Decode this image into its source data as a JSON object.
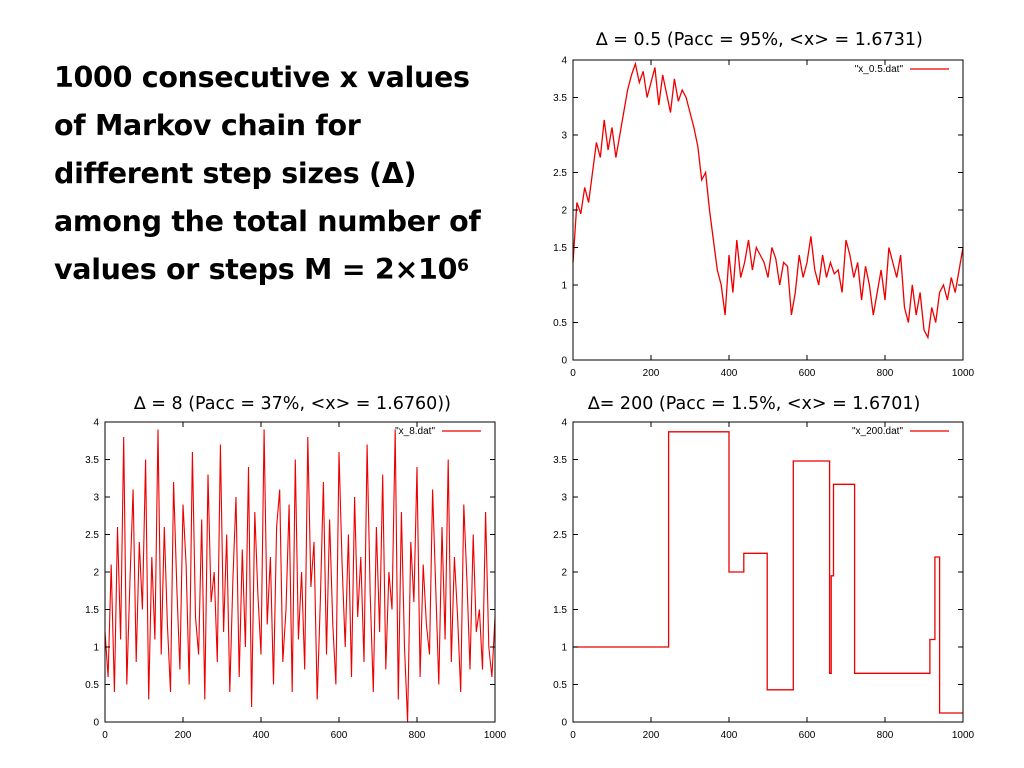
{
  "slide": {
    "heading": {
      "lines": [
        "1000 consecutive x values",
        "of Markov chain for",
        "different step sizes (Δ)",
        "among the total number of"
      ],
      "last_line_prefix": "values or steps M = 2×10",
      "last_line_superscript": "6"
    }
  },
  "panels": {
    "p05": {
      "caption": "∆ = 0.5 (Pacc = 95%, <x> = 1.6731)"
    },
    "p8": {
      "caption": "∆ = 8 (Pacc = 37%, <x> = 1.6760))"
    },
    "p200": {
      "caption": "∆= 200 (Pacc = 1.5%, <x> = 1.6701)"
    }
  },
  "colors": {
    "series": "#ee0000",
    "axis": "#000000",
    "text": "#000000"
  },
  "chart_data": [
    {
      "type": "line",
      "legend": "\"x_0.5.dat\"",
      "legend_position": "top-right",
      "grid": false,
      "xlim": [
        0,
        1000
      ],
      "ylim": [
        0,
        4
      ],
      "xticks": [
        "0",
        "200",
        "400",
        "600",
        "800",
        "1000"
      ],
      "yticks": [
        "0",
        "0.5",
        "1",
        "1.5",
        "2",
        "2.5",
        "3",
        "3.5",
        "4"
      ],
      "series": [
        {
          "x": [
            0,
            10,
            20,
            30,
            40,
            50,
            60,
            70,
            80,
            90,
            100,
            110,
            120,
            130,
            140,
            150,
            160,
            170,
            180,
            190,
            200,
            210,
            220,
            230,
            240,
            250,
            260,
            270,
            280,
            290,
            300,
            310,
            320,
            330,
            340,
            350,
            360,
            370,
            380,
            390,
            400,
            410,
            420,
            430,
            440,
            450,
            460,
            470,
            480,
            490,
            500,
            510,
            520,
            530,
            540,
            550,
            560,
            570,
            580,
            590,
            600,
            610,
            620,
            630,
            640,
            650,
            660,
            670,
            680,
            690,
            700,
            710,
            720,
            730,
            740,
            750,
            760,
            770,
            780,
            790,
            800,
            810,
            820,
            830,
            840,
            850,
            860,
            870,
            880,
            890,
            900,
            910,
            920,
            930,
            940,
            950,
            960,
            970,
            980,
            990,
            1000
          ],
          "values": [
            1.3,
            2.1,
            1.95,
            2.3,
            2.1,
            2.5,
            2.9,
            2.7,
            3.2,
            2.8,
            3.1,
            2.7,
            3.0,
            3.3,
            3.6,
            3.8,
            3.95,
            3.7,
            3.85,
            3.5,
            3.7,
            3.9,
            3.4,
            3.8,
            3.55,
            3.3,
            3.75,
            3.45,
            3.6,
            3.5,
            3.3,
            3.1,
            2.85,
            2.4,
            2.5,
            2.0,
            1.6,
            1.2,
            1.0,
            0.6,
            1.4,
            0.9,
            1.6,
            1.1,
            1.3,
            1.6,
            1.2,
            1.5,
            1.4,
            1.3,
            1.1,
            1.5,
            1.35,
            1.0,
            1.3,
            1.25,
            0.6,
            0.9,
            1.4,
            1.1,
            1.3,
            1.65,
            1.2,
            1.0,
            1.4,
            1.1,
            1.3,
            1.15,
            1.2,
            0.9,
            1.6,
            1.4,
            1.1,
            1.3,
            0.8,
            1.25,
            1.0,
            0.6,
            0.9,
            1.2,
            0.8,
            1.5,
            1.3,
            1.1,
            1.4,
            0.7,
            0.5,
            1.0,
            0.6,
            0.9,
            0.4,
            0.3,
            0.7,
            0.5,
            0.9,
            1.0,
            0.8,
            1.1,
            0.9,
            1.2,
            1.5
          ]
        }
      ]
    },
    {
      "type": "line",
      "legend": "\"x_8.dat\"",
      "legend_position": "top-right",
      "grid": false,
      "xlim": [
        0,
        1000
      ],
      "ylim": [
        0,
        4
      ],
      "xticks": [
        "0",
        "200",
        "400",
        "600",
        "800",
        "1000"
      ],
      "yticks": [
        "0",
        "0.5",
        "1",
        "1.5",
        "2",
        "2.5",
        "3",
        "3.5",
        "4"
      ],
      "series": [
        {
          "x": [
            0,
            8,
            16,
            24,
            32,
            40,
            48,
            56,
            64,
            72,
            80,
            88,
            96,
            104,
            112,
            120,
            128,
            136,
            144,
            152,
            160,
            168,
            176,
            184,
            192,
            200,
            208,
            216,
            224,
            232,
            240,
            248,
            256,
            264,
            272,
            280,
            288,
            296,
            304,
            312,
            320,
            328,
            336,
            344,
            352,
            360,
            368,
            376,
            384,
            392,
            400,
            408,
            416,
            424,
            432,
            440,
            448,
            456,
            464,
            472,
            480,
            488,
            496,
            504,
            512,
            520,
            528,
            536,
            544,
            552,
            560,
            568,
            576,
            584,
            592,
            600,
            608,
            616,
            624,
            632,
            640,
            648,
            656,
            664,
            672,
            680,
            688,
            696,
            704,
            712,
            720,
            728,
            736,
            744,
            752,
            760,
            768,
            776,
            784,
            792,
            800,
            808,
            816,
            824,
            832,
            840,
            848,
            856,
            864,
            872,
            880,
            888,
            896,
            904,
            912,
            920,
            928,
            936,
            944,
            952,
            960,
            968,
            976,
            984,
            992,
            1000
          ],
          "values": [
            1.2,
            0.6,
            2.1,
            0.4,
            2.6,
            1.1,
            3.8,
            0.5,
            1.9,
            3.1,
            0.8,
            2.4,
            1.5,
            3.5,
            0.3,
            2.2,
            1.1,
            3.9,
            0.9,
            2.6,
            1.3,
            0.4,
            3.2,
            1.8,
            0.7,
            2.9,
            2.1,
            0.5,
            3.6,
            1.4,
            0.9,
            2.7,
            0.3,
            3.3,
            1.6,
            2.0,
            0.8,
            3.7,
            1.2,
            2.5,
            0.4,
            1.9,
            3.0,
            0.6,
            2.3,
            1.0,
            3.4,
            0.2,
            2.8,
            1.7,
            0.9,
            3.9,
            1.3,
            2.2,
            0.5,
            2.6,
            3.1,
            0.8,
            1.5,
            2.9,
            0.4,
            3.5,
            1.1,
            2.0,
            0.7,
            3.8,
            1.8,
            2.4,
            0.3,
            1.6,
            3.2,
            0.9,
            2.7,
            1.3,
            0.5,
            3.6,
            2.1,
            1.0,
            2.5,
            0.6,
            3.0,
            1.4,
            2.2,
            0.8,
            3.7,
            1.7,
            0.4,
            2.6,
            1.2,
            3.3,
            0.7,
            2.0,
            1.5,
            3.9,
            0.3,
            2.8,
            1.0,
            0.0,
            2.4,
            1.6,
            3.4,
            0.6,
            2.1,
            1.3,
            0.9,
            3.1,
            1.8,
            0.5,
            2.6,
            1.1,
            3.5,
            0.8,
            2.2,
            1.4,
            0.4,
            2.9,
            1.9,
            0.7,
            2.5,
            1.2,
            1.5,
            0.7,
            2.8,
            1.0,
            0.6,
            1.4
          ]
        }
      ]
    },
    {
      "type": "line",
      "legend": "\"x_200.dat\"",
      "legend_position": "top-right",
      "grid": false,
      "xlim": [
        0,
        1000
      ],
      "ylim": [
        0,
        4
      ],
      "xticks": [
        "0",
        "200",
        "400",
        "600",
        "800",
        "1000"
      ],
      "yticks": [
        "0",
        "0.5",
        "1",
        "1.5",
        "2",
        "2.5",
        "3",
        "3.5",
        "4"
      ],
      "series": [
        {
          "step": true,
          "x": [
            0,
            245,
            400,
            438,
            498,
            565,
            658,
            662,
            668,
            678,
            722,
            915,
            928,
            940,
            955,
            1000
          ],
          "values": [
            1.0,
            3.87,
            2.0,
            2.25,
            0.43,
            3.48,
            0.65,
            1.95,
            3.17,
            3.17,
            0.65,
            1.1,
            2.2,
            0.12,
            0.12,
            0.12
          ]
        }
      ]
    }
  ]
}
